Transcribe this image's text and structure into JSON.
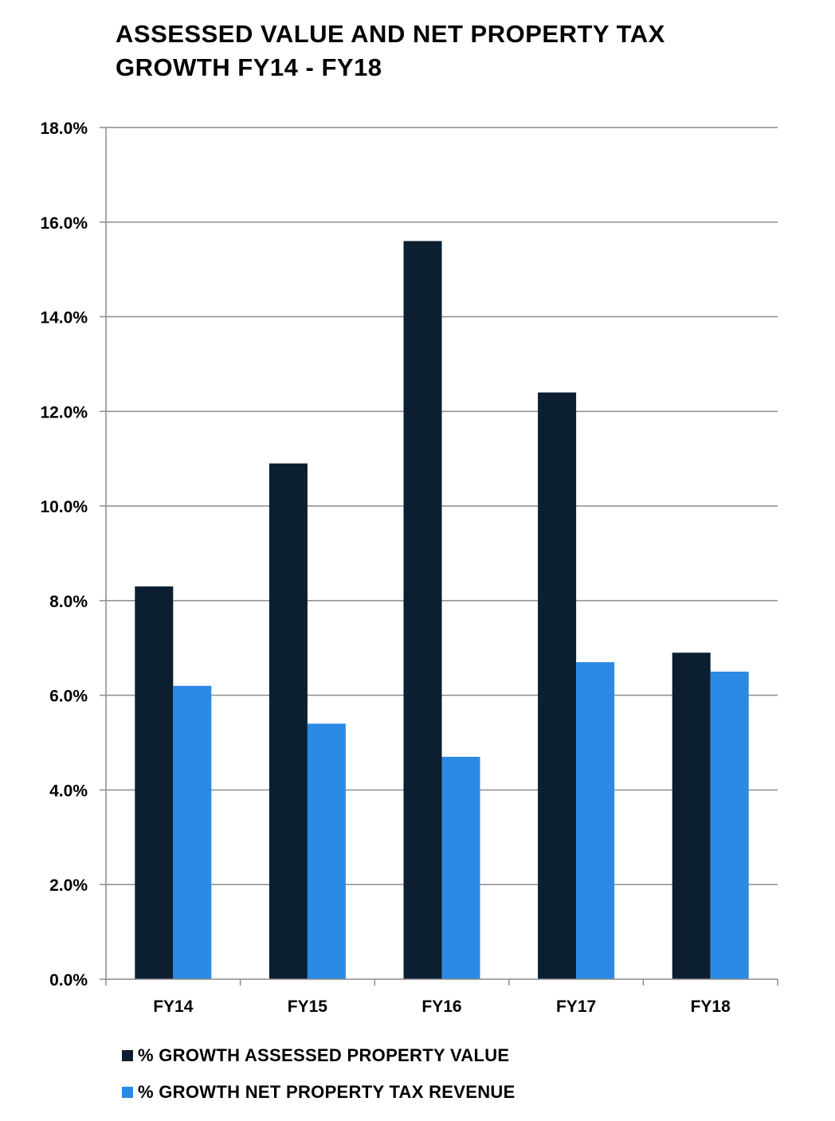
{
  "chart_data": {
    "type": "bar",
    "title": "ASSESSED VALUE AND NET PROPERTY TAX GROWTH FY14 - FY18",
    "categories": [
      "FY14",
      "FY15",
      "FY16",
      "FY17",
      "FY18"
    ],
    "series": [
      {
        "name": "% GROWTH ASSESSED PROPERTY VALUE",
        "values": [
          8.3,
          10.9,
          15.6,
          12.4,
          6.9
        ],
        "color": "#0b1f31"
      },
      {
        "name": "% GROWTH NET PROPERTY TAX REVENUE",
        "values": [
          6.2,
          5.4,
          4.7,
          6.7,
          6.5
        ],
        "color": "#2a8ae4"
      }
    ],
    "yticks": [
      "0.0%",
      "2.0%",
      "4.0%",
      "6.0%",
      "8.0%",
      "10.0%",
      "12.0%",
      "14.0%",
      "16.0%",
      "18.0%"
    ],
    "ylim": [
      0,
      18
    ],
    "grid": true,
    "legend_position": "bottom-left"
  }
}
